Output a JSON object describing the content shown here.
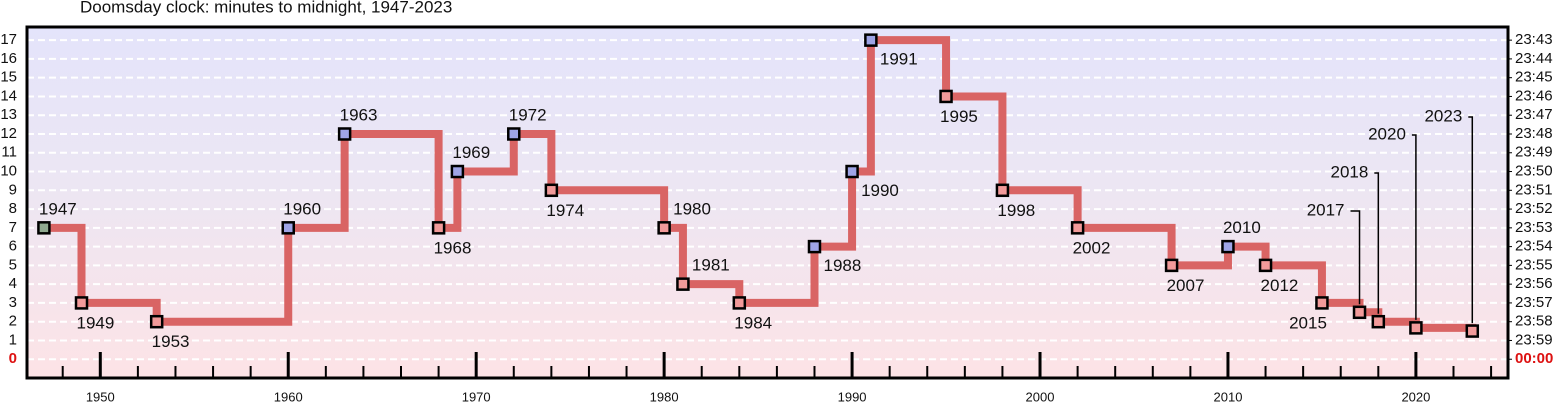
{
  "chart_data": {
    "type": "step",
    "title": "Doomsday clock: minutes to midnight, 1947-2023",
    "x": [
      1947,
      1949,
      1953,
      1960,
      1963,
      1968,
      1969,
      1972,
      1974,
      1980,
      1981,
      1984,
      1988,
      1990,
      1991,
      1995,
      1998,
      2002,
      2007,
      2010,
      2012,
      2015,
      2017,
      2018,
      2020,
      2023
    ],
    "values": [
      7,
      3,
      2,
      7,
      12,
      7,
      10,
      12,
      9,
      7,
      4,
      3,
      6,
      10,
      17,
      14,
      9,
      7,
      5,
      6,
      5,
      3,
      2.5,
      2,
      1.67,
      1.5
    ],
    "color": "#d96464",
    "marker_colors": [
      "#8fa88f",
      "#f29a9a",
      "#f29a9a",
      "#9ea4e6",
      "#9ea4e6",
      "#f29a9a",
      "#9ea4e6",
      "#9ea4e6",
      "#f29a9a",
      "#f29a9a",
      "#f29a9a",
      "#f29a9a",
      "#9ea4e6",
      "#9ea4e6",
      "#9ea4e6",
      "#f29a9a",
      "#f29a9a",
      "#f29a9a",
      "#f29a9a",
      "#9ea4e6",
      "#f29a9a",
      "#f29a9a",
      "#f29a9a",
      "#f29a9a",
      "#f29a9a",
      "#f29a9a"
    ],
    "xlim": [
      1946.1,
      2024.9
    ],
    "xticks": [
      1950,
      1960,
      1970,
      1980,
      1990,
      2000,
      2010,
      2020
    ],
    "xticks_minor": [
      1948,
      1952,
      1954,
      1956,
      1958,
      1962,
      1964,
      1966,
      1968,
      1972,
      1974,
      1976,
      1978,
      1982,
      1984,
      1986,
      1988,
      1992,
      1994,
      1996,
      1998,
      2002,
      2004,
      2006,
      2008,
      2012,
      2014,
      2016,
      2018,
      2022,
      2024
    ],
    "ylim": [
      -1,
      17.7
    ],
    "yticks": [
      0,
      1,
      2,
      3,
      4,
      5,
      6,
      7,
      8,
      9,
      10,
      11,
      12,
      13,
      14,
      15,
      16,
      17
    ],
    "y2lim": [
      -1,
      17.7
    ],
    "y2ticks": [
      {
        "value": 0,
        "label": "00:00"
      },
      {
        "value": 1,
        "label": "23:59"
      },
      {
        "value": 2,
        "label": "23:58"
      },
      {
        "value": 3,
        "label": "23:57"
      },
      {
        "value": 4,
        "label": "23:56"
      },
      {
        "value": 5,
        "label": "23:55"
      },
      {
        "value": 6,
        "label": "23:54"
      },
      {
        "value": 7,
        "label": "23:53"
      },
      {
        "value": 8,
        "label": "23:52"
      },
      {
        "value": 9,
        "label": "23:51"
      },
      {
        "value": 10,
        "label": "23:50"
      },
      {
        "value": 11,
        "label": "23:49"
      },
      {
        "value": 12,
        "label": "23:48"
      },
      {
        "value": 13,
        "label": "23:47"
      },
      {
        "value": 14,
        "label": "23:46"
      },
      {
        "value": 15,
        "label": "23:45"
      },
      {
        "value": 16,
        "label": "23:44"
      },
      {
        "value": 17,
        "label": "23:43"
      }
    ],
    "grid": true
  }
}
